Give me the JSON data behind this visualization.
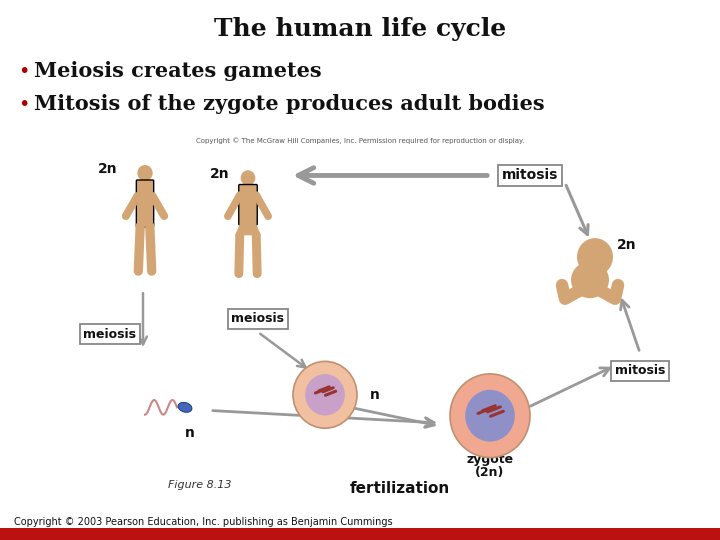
{
  "title": "The human life cycle",
  "bullet1": "Meiosis creates gametes",
  "bullet2": "Mitosis of the zygote produces adult bodies",
  "bullet_color": "#aa0000",
  "title_fontsize": 18,
  "bullet_fontsize": 15,
  "figure_caption": "Figure 8.13",
  "copyright": "Copyright © 2003 Pearson Education, Inc. publishing as Benjamin Cummings",
  "mcgraw_copyright": "Copyright © The McGraw Hill Companies, Inc. Permission required for reproduction or display.",
  "background_color": "#ffffff",
  "bottom_bar_color": "#bb1111",
  "skin_color": "#d4a574",
  "cell_outer": "#f0c0a0",
  "cell_inner": "#c8a0c8",
  "zygote_outer": "#f0a890",
  "zygote_inner": "#9090c8",
  "sperm_tail": "#cc8888",
  "sperm_head": "#4466bb",
  "chrom_color": "#993333",
  "arrow_color": "#999999",
  "box_edge": "#888888"
}
